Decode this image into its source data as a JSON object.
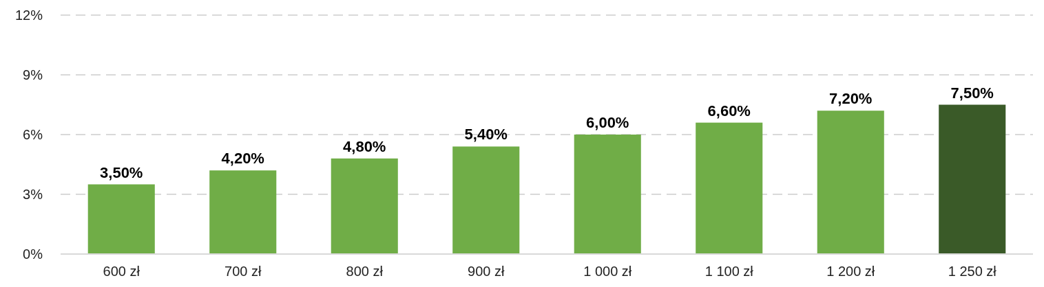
{
  "chart_data": {
    "type": "bar",
    "categories": [
      "600 zł",
      "700 zł",
      "800 zł",
      "900 zł",
      "1 000 zł",
      "1 100 zł",
      "1 200 zł",
      "1 250 zł"
    ],
    "values": [
      3.5,
      4.2,
      4.8,
      5.4,
      6.0,
      6.6,
      7.2,
      7.5
    ],
    "colors": [
      "#70ad47",
      "#70ad47",
      "#70ad47",
      "#70ad47",
      "#70ad47",
      "#70ad47",
      "#70ad47",
      "#3a5a28"
    ],
    "value_labels": [
      "3,50%",
      "4,20%",
      "4,80%",
      "5,40%",
      "6,00%",
      "6,60%",
      "7,20%",
      "7,50%"
    ],
    "ylim": [
      0,
      12
    ],
    "yticks": [
      {
        "value": 0,
        "label": "0%"
      },
      {
        "value": 3,
        "label": "3%"
      },
      {
        "value": 6,
        "label": "6%"
      },
      {
        "value": 9,
        "label": "9%"
      },
      {
        "value": 12,
        "label": "12%"
      }
    ],
    "grid": "y"
  }
}
